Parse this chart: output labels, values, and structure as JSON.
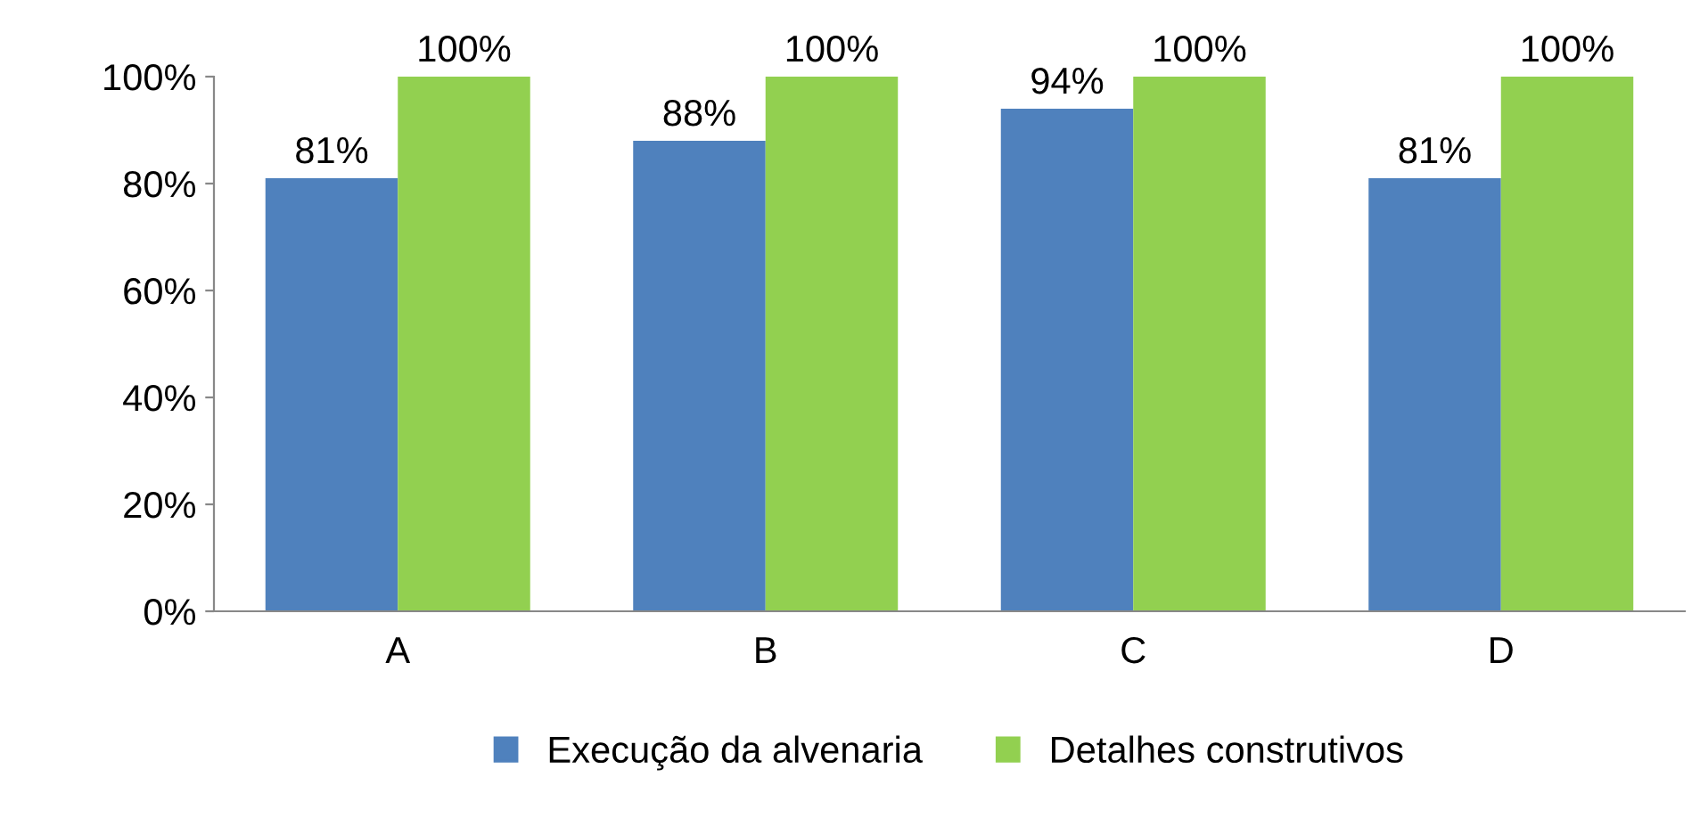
{
  "chart_data": {
    "type": "bar",
    "categories": [
      "A",
      "B",
      "C",
      "D"
    ],
    "series": [
      {
        "name": "Execução da alvenaria",
        "color": "#4f81bd",
        "values": [
          81,
          88,
          94,
          81
        ],
        "value_labels": [
          "81%",
          "88%",
          "94%",
          "81%"
        ]
      },
      {
        "name": "Detalhes construtivos",
        "color": "#92d050",
        "values": [
          100,
          100,
          100,
          100
        ],
        "value_labels": [
          "100%",
          "100%",
          "100%",
          "100%"
        ]
      }
    ],
    "ylim": [
      0,
      100
    ],
    "yticks": [
      {
        "value": 0,
        "label": "0%"
      },
      {
        "value": 20,
        "label": "20%"
      },
      {
        "value": 40,
        "label": "40%"
      },
      {
        "value": 60,
        "label": "60%"
      },
      {
        "value": 80,
        "label": "80%"
      },
      {
        "value": 100,
        "label": "100%"
      }
    ],
    "grid": false,
    "legend": "bottom"
  }
}
